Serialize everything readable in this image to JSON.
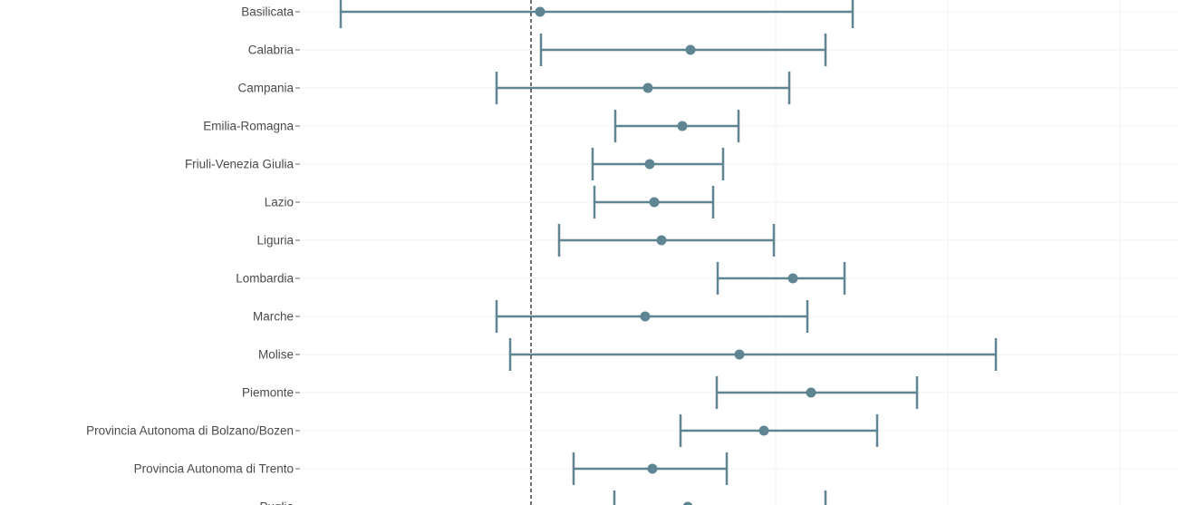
{
  "chart_data": {
    "type": "forest",
    "title": "",
    "xlabel": "",
    "ylabel": "",
    "x_units_note": "x-axis not visible; values on relative scale with reference line at 0",
    "reference_line": 0,
    "xlim": [
      -1.3,
      3.6
    ],
    "grid": true,
    "color": "#5f8592",
    "rows": [
      {
        "label": "Basilicata",
        "lo": -1.05,
        "est": 0.05,
        "hi": 1.775
      },
      {
        "label": "Calabria",
        "lo": 0.055,
        "est": 0.88,
        "hi": 1.625
      },
      {
        "label": "Campania",
        "lo": -0.19,
        "est": 0.645,
        "hi": 1.425
      },
      {
        "label": "Emilia-Romagna",
        "lo": 0.465,
        "est": 0.835,
        "hi": 1.145
      },
      {
        "label": "Friuli-Venezia Giulia",
        "lo": 0.34,
        "est": 0.655,
        "hi": 1.06
      },
      {
        "label": "Lazio",
        "lo": 0.35,
        "est": 0.68,
        "hi": 1.005
      },
      {
        "label": "Liguria",
        "lo": 0.155,
        "est": 0.72,
        "hi": 1.34
      },
      {
        "label": "Lombardia",
        "lo": 1.03,
        "est": 1.445,
        "hi": 1.73
      },
      {
        "label": "Marche",
        "lo": -0.19,
        "est": 0.63,
        "hi": 1.525
      },
      {
        "label": "Molise",
        "lo": -0.115,
        "est": 1.15,
        "hi": 2.565
      },
      {
        "label": "Piemonte",
        "lo": 1.025,
        "est": 1.545,
        "hi": 2.13
      },
      {
        "label": "Provincia Autonoma di Bolzano/Bozen",
        "lo": 0.825,
        "est": 1.285,
        "hi": 1.91
      },
      {
        "label": "Provincia Autonoma di Trento",
        "lo": 0.235,
        "est": 0.67,
        "hi": 1.08
      },
      {
        "label": "Puglia",
        "lo": 0.46,
        "est": 0.865,
        "hi": 1.625
      }
    ]
  }
}
